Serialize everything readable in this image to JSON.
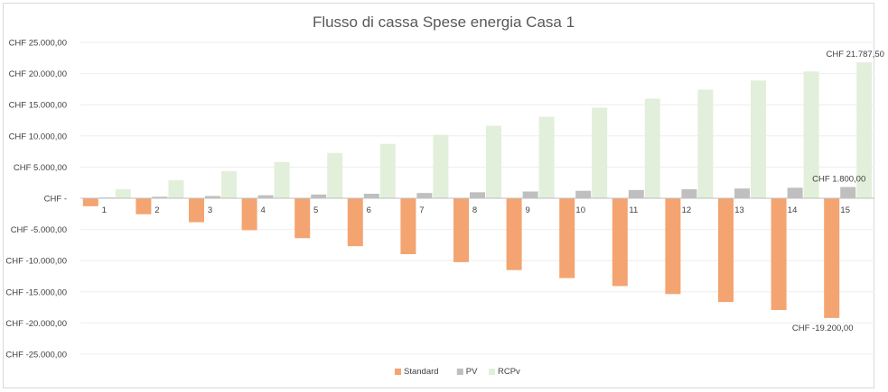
{
  "chart_data": {
    "type": "bar",
    "title": "Flusso di cassa Spese energia Casa 1",
    "xlabel": "",
    "ylabel": "",
    "categories": [
      "1",
      "2",
      "3",
      "4",
      "5",
      "6",
      "7",
      "8",
      "9",
      "10",
      "11",
      "12",
      "13",
      "14",
      "15"
    ],
    "series": [
      {
        "name": "Standard",
        "color": "#F4A470",
        "values": [
          -1280,
          -2560,
          -3840,
          -5120,
          -6400,
          -7680,
          -8960,
          -10240,
          -11520,
          -12800,
          -14080,
          -15360,
          -16640,
          -17920,
          -19200
        ]
      },
      {
        "name": "PV",
        "color": "#BFBFBF",
        "values": [
          120,
          240,
          360,
          480,
          600,
          720,
          840,
          960,
          1080,
          1200,
          1320,
          1440,
          1560,
          1680,
          1800
        ]
      },
      {
        "name": "RCPv",
        "color": "#E2EFDA",
        "values": [
          1452.5,
          2905,
          4357.5,
          5810,
          7262.5,
          8715,
          10167.5,
          11620,
          13072.5,
          14525,
          15977.5,
          17430,
          18882.5,
          20335,
          21787.5
        ]
      }
    ],
    "ylim": [
      -25000,
      25000
    ],
    "y_ticks": [
      25000,
      20000,
      15000,
      10000,
      5000,
      0,
      -5000,
      -10000,
      -15000,
      -20000,
      -25000
    ],
    "y_tick_labels": [
      "CHF 25.000,00",
      "CHF 20.000,00",
      "CHF 15.000,00",
      "CHF 10.000,00",
      "CHF 5.000,00",
      "CHF -",
      "CHF -5.000,00",
      "CHF -10.000,00",
      "CHF -15.000,00",
      "CHF -20.000,00",
      "CHF -25.000,00"
    ],
    "grid": true,
    "legend_position": "bottom",
    "data_labels": [
      {
        "series": "RCPv",
        "category": "15",
        "text": "CHF 21.787,50"
      },
      {
        "series": "PV",
        "category": "15",
        "text": "CHF 1.800,00"
      },
      {
        "series": "Standard",
        "category": "15",
        "text": "CHF -19.200,00"
      }
    ]
  }
}
